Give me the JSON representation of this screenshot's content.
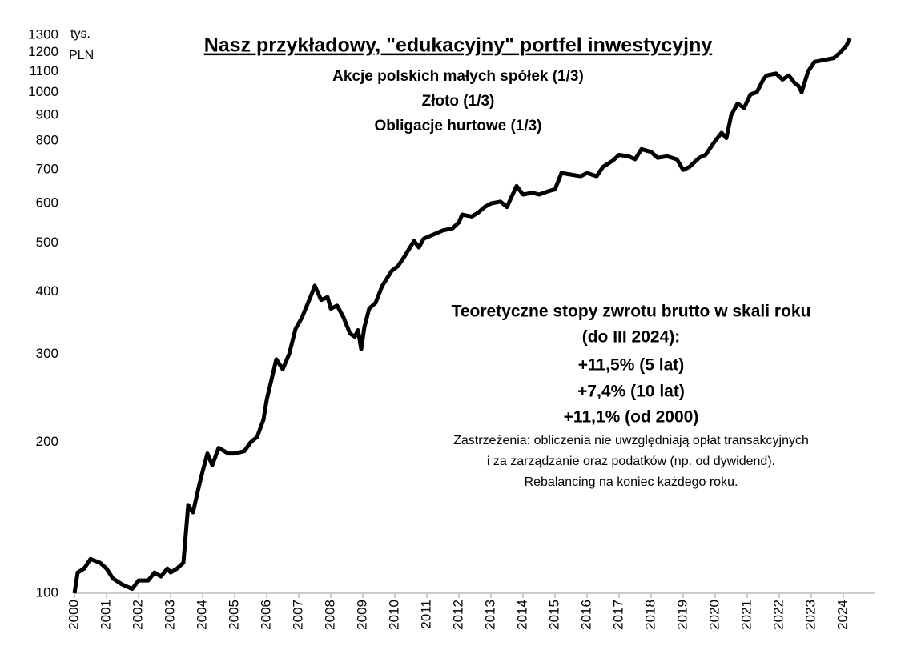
{
  "chart_data": {
    "type": "line",
    "log_y": true,
    "title": "Nasz przykładowy, \"edukacyjny\" portfel inwestycyjny",
    "subtitle": [
      "Akcje polskich małych spółek (1/3)",
      "Złoto (1/3)",
      "Obligacje hurtowe (1/3)"
    ],
    "y_label": [
      "tys.",
      "PLN"
    ],
    "annotation": [
      "Teoretyczne stopy zwrotu brutto w skali roku",
      "(do III 2024):",
      "+11,5% (5 lat)",
      "+7,4% (10 lat)",
      "+11,1% (od 2000)"
    ],
    "note": [
      "Zastrzeżenia: obliczenia nie uwzględniają opłat transakcyjnych",
      "i za zarządzanie oraz podatków (np. od dywidend).",
      "Rebalancing na koniec każdego roku."
    ],
    "xlim": [
      2000,
      2025
    ],
    "xticks": [
      2000,
      2001,
      2002,
      2003,
      2004,
      2005,
      2006,
      2007,
      2008,
      2009,
      2010,
      2011,
      2012,
      2013,
      2014,
      2015,
      2016,
      2017,
      2018,
      2019,
      2020,
      2021,
      2022,
      2023,
      2024
    ],
    "ylim": [
      100,
      1300
    ],
    "yticks": [
      100,
      200,
      300,
      400,
      500,
      600,
      700,
      800,
      900,
      1000,
      1100,
      1200,
      1300
    ],
    "series": [
      {
        "color": "#000000",
        "x": [
          2000.0,
          2000.1,
          2000.3,
          2000.5,
          2000.8,
          2001.0,
          2001.2,
          2001.5,
          2001.8,
          2002.0,
          2002.3,
          2002.5,
          2002.7,
          2002.9,
          2003.0,
          2003.2,
          2003.4,
          2003.55,
          2003.7,
          2003.9,
          2004.0,
          2004.15,
          2004.3,
          2004.5,
          2004.8,
          2005.0,
          2005.3,
          2005.5,
          2005.7,
          2005.9,
          2006.0,
          2006.3,
          2006.5,
          2006.7,
          2006.9,
          2007.1,
          2007.4,
          2007.5,
          2007.7,
          2007.9,
          2008.0,
          2008.2,
          2008.4,
          2008.6,
          2008.75,
          2008.85,
          2008.95,
          2009.05,
          2009.2,
          2009.4,
          2009.6,
          2009.9,
          2010.1,
          2010.3,
          2010.6,
          2010.75,
          2010.9,
          2011.2,
          2011.5,
          2011.8,
          2012.0,
          2012.1,
          2012.4,
          2012.6,
          2012.8,
          2013.0,
          2013.3,
          2013.5,
          2013.6,
          2013.8,
          2014.0,
          2014.3,
          2014.5,
          2014.8,
          2015.0,
          2015.2,
          2015.5,
          2015.8,
          2016.0,
          2016.3,
          2016.5,
          2016.8,
          2017.0,
          2017.3,
          2017.5,
          2017.7,
          2018.0,
          2018.2,
          2018.5,
          2018.8,
          2019.0,
          2019.2,
          2019.5,
          2019.7,
          2020.0,
          2020.2,
          2020.35,
          2020.5,
          2020.7,
          2020.9,
          2021.1,
          2021.3,
          2021.5,
          2021.6,
          2021.9,
          2022.1,
          2022.3,
          2022.5,
          2022.6,
          2022.7,
          2022.9,
          2023.1,
          2023.4,
          2023.7,
          2023.9,
          2024.1,
          2024.2
        ],
        "values": [
          100,
          110,
          112,
          117,
          115,
          112,
          107,
          104,
          102,
          106,
          106,
          110,
          108,
          112,
          110,
          112,
          115,
          150,
          145,
          165,
          175,
          190,
          180,
          195,
          190,
          190,
          192,
          200,
          205,
          222,
          243,
          293,
          280,
          300,
          337,
          355,
          395,
          411,
          385,
          390,
          370,
          375,
          355,
          330,
          325,
          335,
          307,
          340,
          370,
          380,
          410,
          440,
          450,
          470,
          505,
          490,
          510,
          520,
          530,
          535,
          550,
          570,
          565,
          575,
          590,
          600,
          605,
          590,
          610,
          650,
          625,
          630,
          625,
          635,
          640,
          690,
          685,
          680,
          690,
          680,
          710,
          730,
          750,
          745,
          735,
          770,
          760,
          740,
          745,
          735,
          700,
          710,
          740,
          750,
          800,
          830,
          810,
          900,
          950,
          930,
          990,
          1000,
          1060,
          1080,
          1090,
          1060,
          1080,
          1040,
          1030,
          1000,
          1100,
          1150,
          1160,
          1170,
          1200,
          1240,
          1280
        ]
      }
    ]
  }
}
